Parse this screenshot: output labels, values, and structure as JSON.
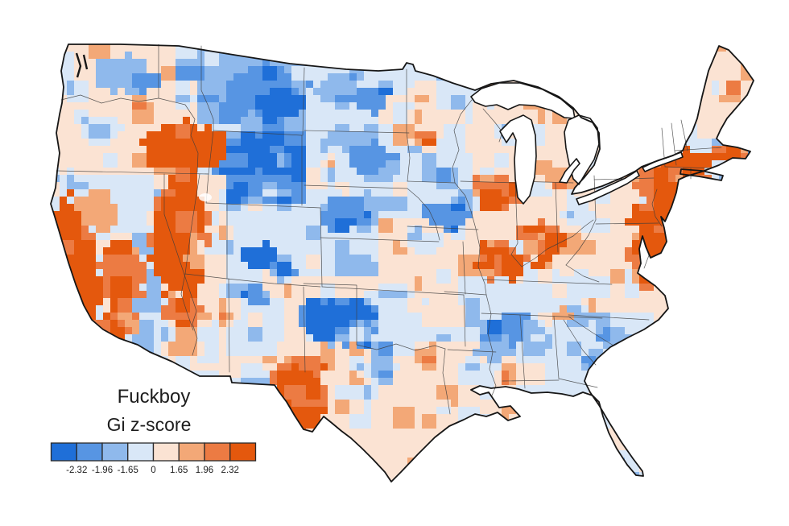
{
  "title": "Fuckboy",
  "legend": {
    "title": "Gi z-score",
    "tick_labels": [
      "-2.32",
      "-1.96",
      "-1.65",
      "0",
      "1.65",
      "1.96",
      "2.32"
    ],
    "colors": [
      "#1F6FD8",
      "#5795E3",
      "#8FB9EC",
      "#D9E7F7",
      "#FBE3D3",
      "#F3A877",
      "#EC7B43",
      "#E4580D"
    ]
  },
  "chart_data": {
    "type": "heatmap",
    "subtype": "choropleth-map",
    "region": "contiguous United States, county level",
    "title": "Fuckboy",
    "variable": "Gi z-score (Getis-Ord hotspot statistic) for usage of the word 'Fuckboy'",
    "breaks": [
      -2.32,
      -1.96,
      -1.65,
      0,
      1.65,
      1.96,
      2.32
    ],
    "palette": [
      "#1F6FD8",
      "#5795E3",
      "#8FB9EC",
      "#D9E7F7",
      "#FBE3D3",
      "#F3A877",
      "#EC7B43",
      "#E4580D"
    ],
    "legend_position": "bottom-left",
    "hotspots": [
      "coastal and southern California",
      "Nevada",
      "southern Idaho and southeastern Oregon",
      "central Arizona pocket",
      "West Texas (El Paso - Big Bend)",
      "New York City metro, New Jersey, Connecticut, Rhode Island, Massachusetts",
      "eastern Pennsylvania (Philadelphia)",
      "Maryland, Delaware, Washington DC, northern Virginia, Richmond",
      "Chicago metro and southeastern Wisconsin",
      "St. Louis and southern Illinois",
      "Indianapolis - Cincinnati - Louisville corridor",
      "Minneapolis - St. Paul"
    ],
    "coldspots": [
      "central and eastern Montana",
      "Wyoming",
      "central and northeastern Colorado",
      "western Oklahoma and Texas panhandle",
      "central New Mexico pocket",
      "northeastern Iowa",
      "western Nebraska and Kansas pockets",
      "Alabama - Mississippi - Georgia belt",
      "eastern Texas pockets"
    ],
    "zones": [
      [
        "r",
        55,
        45,
        900,
        560,
        3
      ],
      [
        "r",
        55,
        55,
        160,
        165,
        4
      ],
      [
        "e",
        150,
        92,
        40,
        24,
        2
      ],
      [
        "e",
        182,
        103,
        18,
        12,
        1
      ],
      [
        "r",
        58,
        126,
        185,
        88,
        4
      ],
      [
        "e",
        128,
        160,
        28,
        16,
        3
      ],
      [
        "r",
        248,
        57,
        130,
        108,
        2
      ],
      [
        "e",
        330,
        112,
        52,
        32,
        1
      ],
      [
        "e",
        350,
        128,
        32,
        19,
        0
      ],
      [
        "e",
        290,
        140,
        22,
        13,
        1
      ],
      [
        "r",
        260,
        162,
        116,
        92,
        1
      ],
      [
        "e",
        302,
        192,
        40,
        28,
        0
      ],
      [
        "e",
        350,
        230,
        26,
        16,
        2
      ],
      [
        "e",
        420,
        110,
        30,
        20,
        2
      ],
      [
        "e",
        430,
        180,
        35,
        22,
        2
      ],
      [
        "e",
        470,
        210,
        30,
        15,
        2
      ],
      [
        "e",
        468,
        126,
        30,
        17,
        1
      ],
      [
        "e",
        452,
        196,
        38,
        20,
        1
      ],
      [
        "e",
        445,
        262,
        50,
        26,
        2
      ],
      [
        "e",
        425,
        258,
        25,
        14,
        1
      ],
      [
        "e",
        432,
        262,
        28,
        16,
        1
      ],
      [
        "e",
        520,
        270,
        25,
        14,
        3
      ],
      [
        "e",
        420,
        272,
        26,
        18,
        1
      ],
      [
        "e",
        428,
        278,
        14,
        10,
        0
      ],
      [
        "e",
        322,
        320,
        24,
        18,
        0
      ],
      [
        "e",
        352,
        336,
        18,
        12,
        1
      ],
      [
        "e",
        440,
        330,
        30,
        18,
        2
      ],
      [
        "e",
        470,
        345,
        20,
        10,
        2
      ],
      [
        "r",
        205,
        216,
        80,
        250,
        4
      ],
      [
        "r",
        284,
        347,
        93,
        93,
        3
      ],
      [
        "r",
        284,
        441,
        93,
        24,
        4
      ],
      [
        "e",
        322,
        366,
        20,
        12,
        1
      ],
      [
        "r",
        356,
        346,
        234,
        254,
        4
      ],
      [
        "e",
        492,
        420,
        36,
        26,
        3
      ],
      [
        "e",
        524,
        392,
        26,
        18,
        3
      ],
      [
        "e",
        468,
        458,
        24,
        14,
        3
      ],
      [
        "r",
        452,
        362,
        125,
        68,
        3
      ],
      [
        "e",
        420,
        398,
        52,
        33,
        1
      ],
      [
        "e",
        410,
        400,
        32,
        22,
        0
      ],
      [
        "e",
        450,
        426,
        8,
        6,
        0
      ],
      [
        "e",
        512,
        150,
        42,
        36,
        4
      ],
      [
        "r",
        470,
        268,
        122,
        86,
        4
      ],
      [
        "e",
        525,
        300,
        28,
        16,
        3
      ],
      [
        "e",
        556,
        268,
        30,
        20,
        1
      ],
      [
        "e",
        598,
        172,
        26,
        20,
        4
      ],
      [
        "r",
        588,
        96,
        135,
        148,
        4
      ],
      [
        "e",
        612,
        120,
        30,
        12,
        3
      ],
      [
        "r",
        588,
        240,
        58,
        92,
        4
      ],
      [
        "r",
        640,
        212,
        105,
        115,
        4
      ],
      [
        "e",
        705,
        252,
        24,
        16,
        3
      ],
      [
        "r",
        528,
        345,
        80,
        84,
        3
      ],
      [
        "e",
        550,
        392,
        28,
        22,
        4
      ],
      [
        "r",
        535,
        428,
        102,
        88,
        4
      ],
      [
        "e",
        640,
        408,
        36,
        22,
        1
      ],
      [
        "e",
        614,
        432,
        26,
        16,
        2
      ],
      [
        "e",
        670,
        428,
        20,
        13,
        2
      ],
      [
        "e",
        718,
        390,
        24,
        14,
        2
      ],
      [
        "r",
        728,
        262,
        115,
        125,
        4
      ],
      [
        "r",
        738,
        224,
        75,
        52,
        4
      ],
      [
        "e",
        700,
        320,
        35,
        20,
        4
      ],
      [
        "e",
        760,
        420,
        22,
        14,
        2
      ],
      [
        "e",
        740,
        445,
        18,
        12,
        2
      ],
      [
        "r",
        728,
        490,
        82,
        108,
        4
      ],
      [
        "r",
        742,
        145,
        100,
        78,
        4
      ],
      [
        "r",
        826,
        45,
        128,
        128,
        4
      ],
      [
        "e",
        748,
        262,
        12,
        9,
        5
      ],
      [
        "e",
        668,
        205,
        15,
        9,
        5
      ],
      [
        "e",
        698,
        390,
        11,
        8,
        5
      ],
      [
        "e",
        225,
        183,
        55,
        32,
        7
      ],
      [
        "e",
        254,
        186,
        24,
        22,
        7
      ],
      [
        "e",
        212,
        300,
        14,
        60,
        6
      ],
      [
        "e",
        225,
        290,
        38,
        82,
        7
      ],
      [
        "e",
        242,
        315,
        10,
        25,
        5
      ],
      [
        "e",
        118,
        262,
        30,
        26,
        5
      ],
      [
        "e",
        108,
        322,
        16,
        45,
        6
      ],
      [
        "e",
        150,
        340,
        30,
        45,
        6
      ],
      [
        "e",
        152,
        400,
        22,
        17,
        6
      ],
      [
        "e",
        82,
        295,
        20,
        55,
        7
      ],
      [
        "e",
        102,
        360,
        24,
        50,
        7
      ],
      [
        "e",
        132,
        412,
        28,
        21,
        7
      ],
      [
        "e",
        228,
        388,
        28,
        18,
        6
      ],
      [
        "e",
        252,
        400,
        15,
        10,
        5
      ],
      [
        "e",
        375,
        455,
        30,
        16,
        6
      ],
      [
        "e",
        372,
        495,
        38,
        42,
        7
      ],
      [
        "e",
        355,
        472,
        20,
        24,
        7
      ],
      [
        "e",
        528,
        172,
        15,
        11,
        6
      ],
      [
        "e",
        531,
        176,
        7,
        5,
        7
      ],
      [
        "e",
        616,
        240,
        30,
        25,
        6
      ],
      [
        "e",
        611,
        247,
        18,
        14,
        7
      ],
      [
        "e",
        597,
        221,
        9,
        7,
        6
      ],
      [
        "e",
        621,
        324,
        34,
        26,
        6
      ],
      [
        "e",
        624,
        326,
        24,
        18,
        7
      ],
      [
        "e",
        672,
        298,
        30,
        26,
        6
      ],
      [
        "e",
        666,
        284,
        10,
        8,
        7
      ],
      [
        "e",
        692,
        302,
        9,
        7,
        7
      ],
      [
        "e",
        668,
        330,
        11,
        8,
        7
      ],
      [
        "e",
        836,
        228,
        48,
        46,
        6
      ],
      [
        "e",
        798,
        322,
        20,
        28,
        6
      ],
      [
        "e",
        850,
        204,
        34,
        20,
        7
      ],
      [
        "e",
        905,
        192,
        26,
        12,
        7
      ],
      [
        "e",
        832,
        248,
        24,
        34,
        7
      ],
      [
        "e",
        802,
        270,
        22,
        20,
        7
      ],
      [
        "e",
        812,
        300,
        16,
        36,
        7
      ],
      [
        "e",
        802,
        348,
        13,
        16,
        6
      ]
    ]
  }
}
